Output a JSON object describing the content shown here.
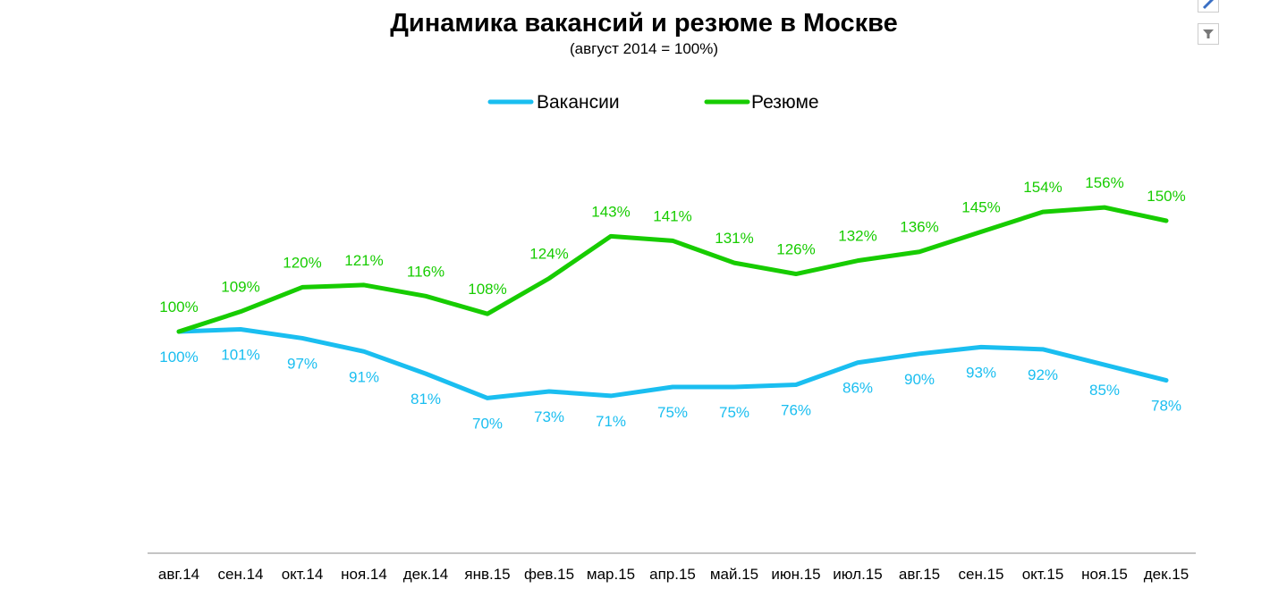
{
  "chart_data": {
    "type": "line",
    "title": "Динамика вакансий и резюме в Москве",
    "subtitle": "(август 2014 = 100%)",
    "categories": [
      "авг.14",
      "сен.14",
      "окт.14",
      "ноя.14",
      "дек.14",
      "янв.15",
      "фев.15",
      "мар.15",
      "апр.15",
      "май.15",
      "июн.15",
      "июл.15",
      "авг.15",
      "сен.15",
      "окт.15",
      "ноя.15",
      "дек.15"
    ],
    "series": [
      {
        "name": "Вакансии",
        "color": "#1ABEF0",
        "values": [
          100,
          101,
          97,
          91,
          81,
          70,
          73,
          71,
          75,
          75,
          76,
          86,
          90,
          93,
          92,
          85,
          78
        ]
      },
      {
        "name": "Резюме",
        "color": "#17CC00",
        "values": [
          100,
          109,
          120,
          121,
          116,
          108,
          124,
          143,
          141,
          131,
          126,
          132,
          136,
          145,
          154,
          156,
          150
        ]
      }
    ],
    "value_suffix": "%",
    "legend_position": "top",
    "grid": false
  },
  "toolbar": {
    "icons": [
      "pen-icon",
      "filter-icon"
    ]
  }
}
